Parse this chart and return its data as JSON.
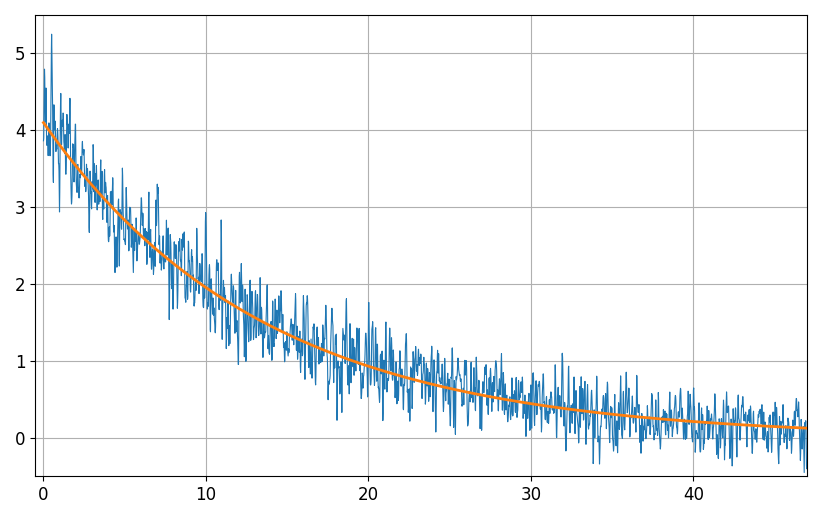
{
  "x_min": 0,
  "x_max": 47,
  "y_min": -0.5,
  "y_max": 5.5,
  "exp_amplitude": 4.1,
  "exp_tau": 13.5,
  "noise_amplitude_early": 0.45,
  "noise_amplitude_late": 0.22,
  "noise_transition": 15.0,
  "blue_color": "#1f77b4",
  "orange_color": "#ff7f0e",
  "blue_linewidth": 0.8,
  "orange_linewidth": 2.0,
  "grid_color": "#b0b0b0",
  "background_color": "#ffffff",
  "xticks": [
    0,
    10,
    20,
    30,
    40
  ],
  "yticks": [
    0,
    1,
    2,
    3,
    4,
    5
  ],
  "n_points": 3000,
  "seed": 17,
  "spike_time1": 0.5,
  "spike_height1": 5.25,
  "spike_time2": 7.0,
  "spike_height2": 3.3,
  "spike_time3": 16.0,
  "spike_height3": 1.85,
  "spike_time4": 26.0,
  "spike_height4": 1.0,
  "spike_time5": 31.5,
  "spike_height5": 0.95
}
